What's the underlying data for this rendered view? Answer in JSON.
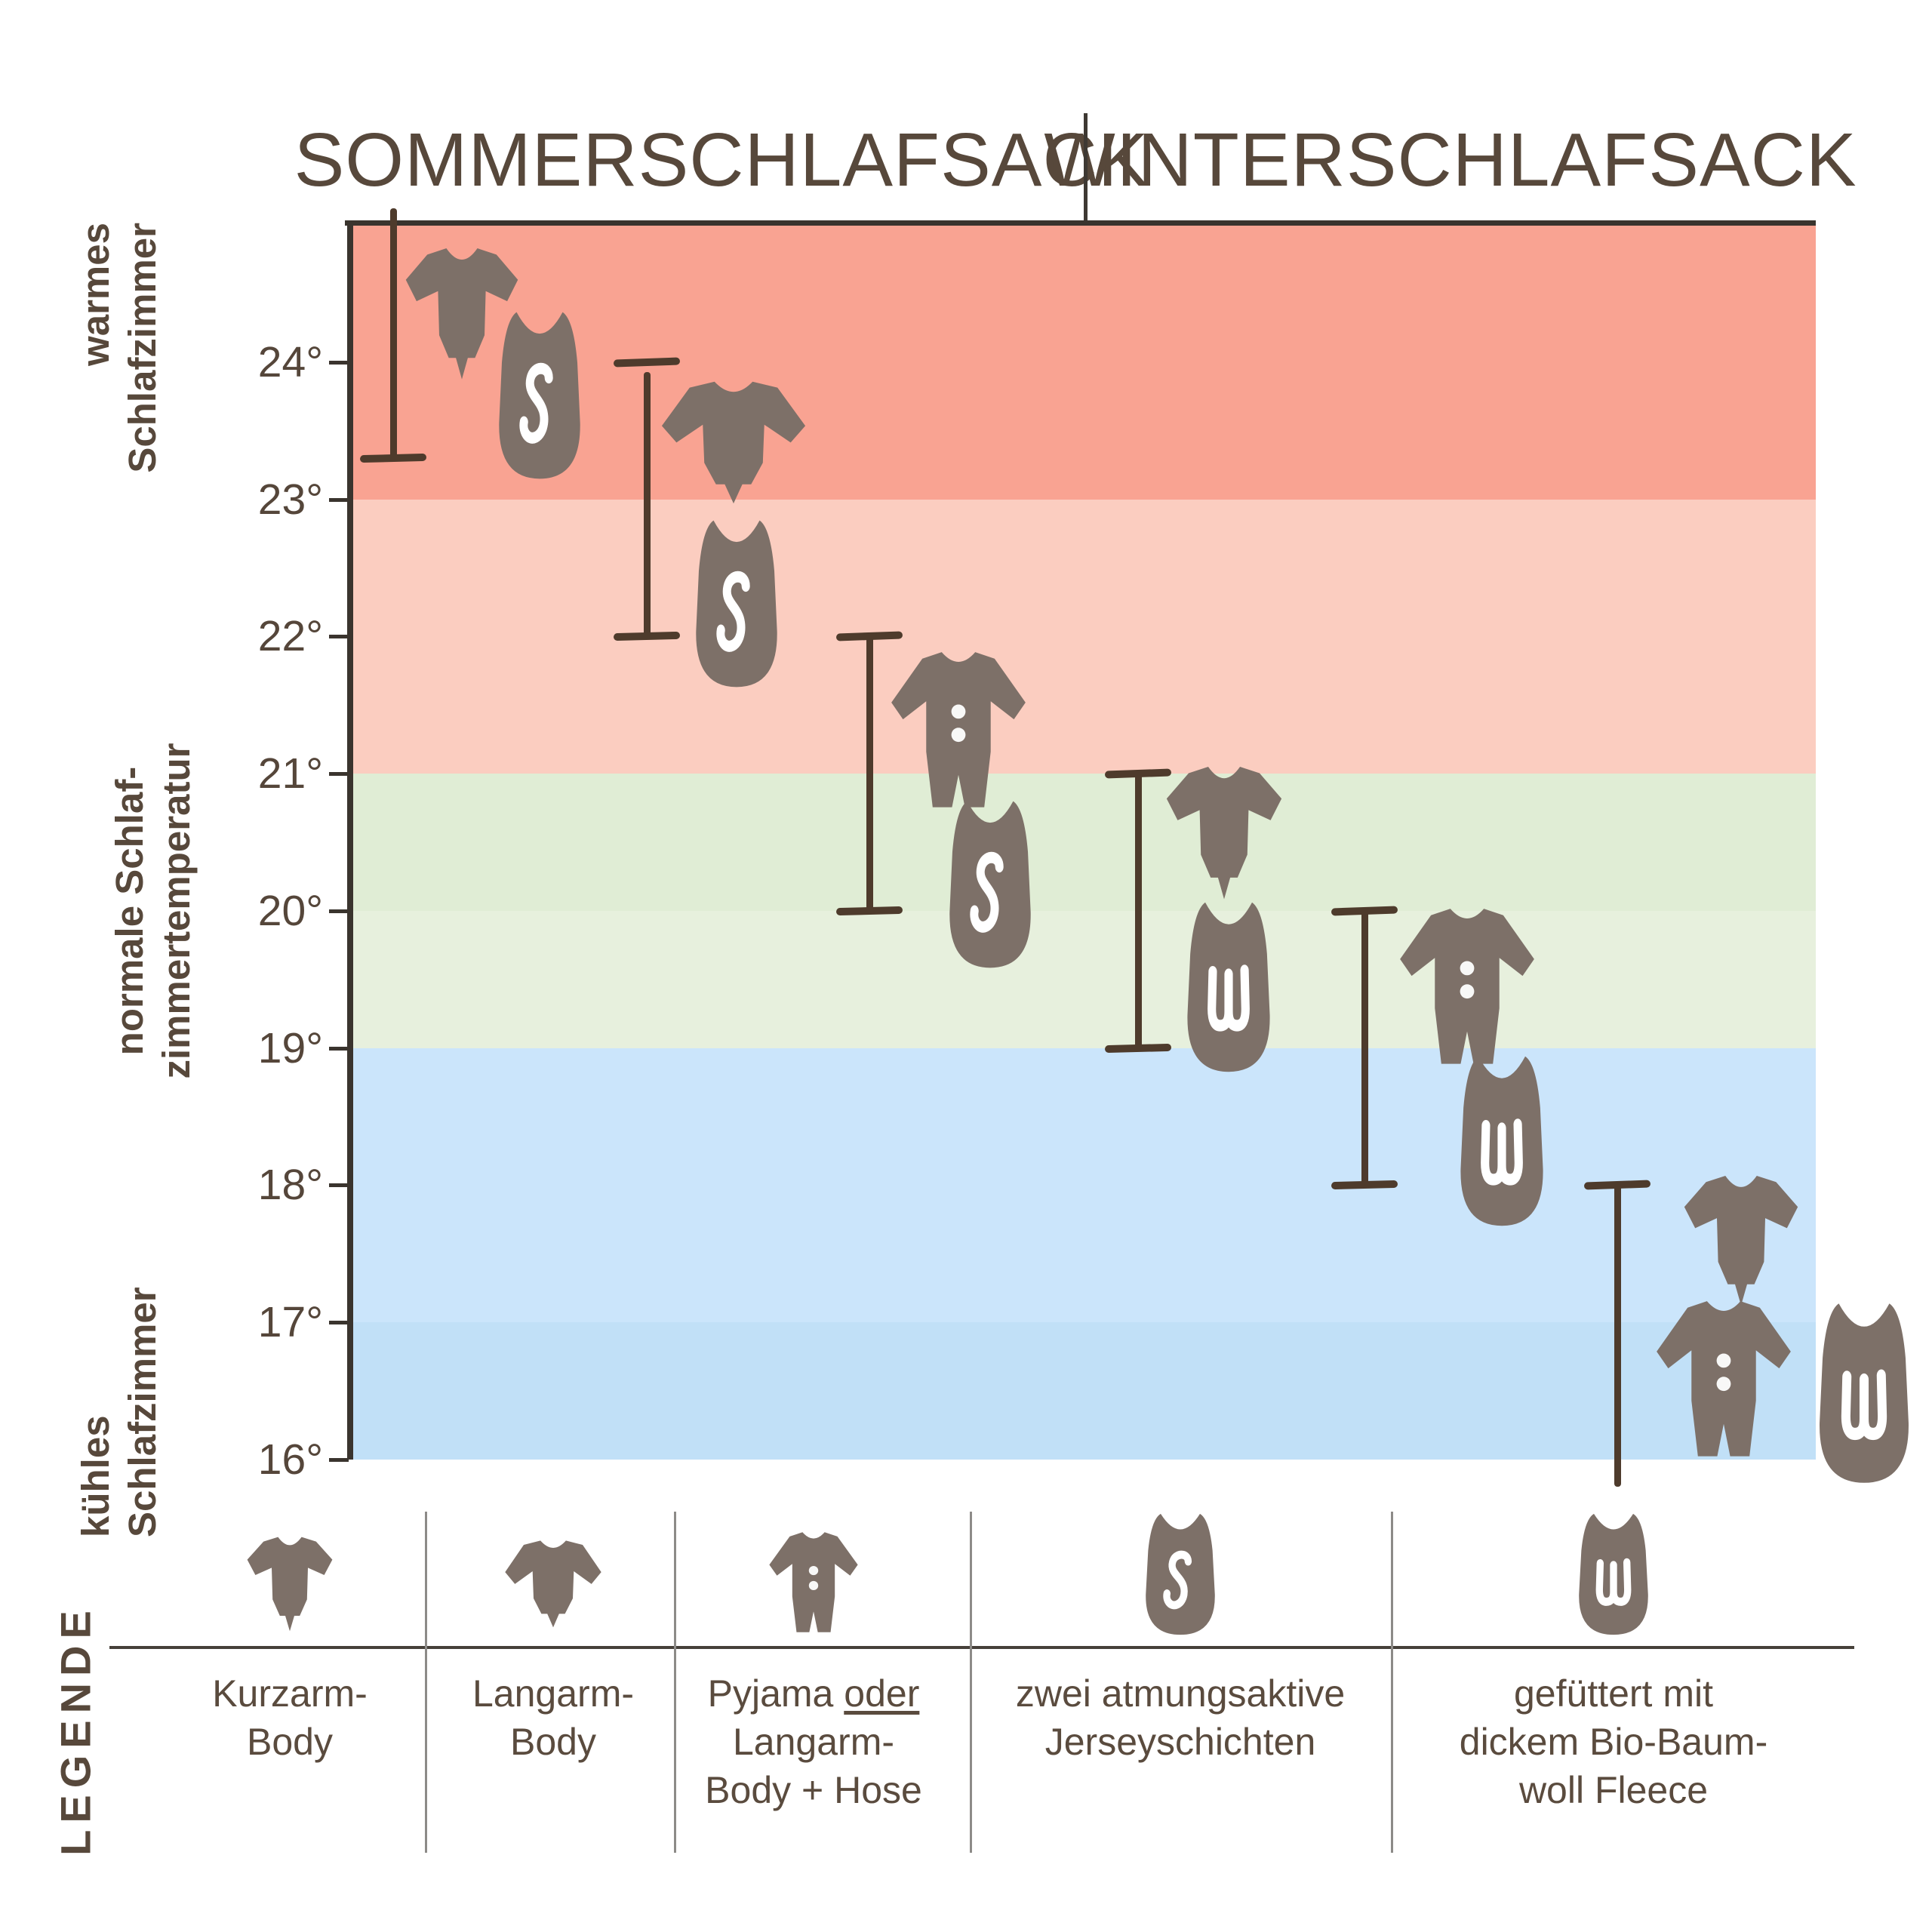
{
  "header": {
    "columns": [
      "SOMMERSCHLAFSACK",
      "WINTERSCHLAFSACK"
    ]
  },
  "colors": {
    "band_23_25": "#F9A392",
    "band_21_23": "#FBCDC0",
    "band_20_21": "#E0EDD5",
    "band_19_20": "#E7F0DD",
    "band_17_19": "#CBE5FB",
    "band_16_17": "#C1E0F7",
    "icon": "#7D7068",
    "bar": "#4E3B2C",
    "text": "#57483B",
    "axis": "#3A342E"
  },
  "zones": [
    {
      "lines": [
        "warmes",
        "Schlafzimmer"
      ]
    },
    {
      "lines": [
        "normale Schlaf-",
        "zimmertemperatur"
      ]
    },
    {
      "lines": [
        "kühles",
        "Schlafzimmer"
      ]
    }
  ],
  "chart_data": {
    "type": "bar",
    "subtype": "vertical-temperature-range-infographic",
    "columns": [
      "SOMMERSCHLAFSACK",
      "WINTERSCHLAFSACK"
    ],
    "ylim": [
      16,
      25
    ],
    "yticks": [
      {
        "value": 24,
        "label": "24°"
      },
      {
        "value": 23,
        "label": "23°"
      },
      {
        "value": 22,
        "label": "22°"
      },
      {
        "value": 21,
        "label": "21°"
      },
      {
        "value": 20,
        "label": "20°"
      },
      {
        "value": 19,
        "label": "19°"
      },
      {
        "value": 18,
        "label": "18°"
      },
      {
        "value": 17,
        "label": "17°"
      },
      {
        "value": 16,
        "label": "16°"
      }
    ],
    "bands": [
      {
        "from": 25,
        "to": 23,
        "zone": "warmes Schlafzimmer",
        "color": "#F9A392"
      },
      {
        "from": 23,
        "to": 21,
        "zone": "warmes Schlafzimmer",
        "color": "#FBCDC0"
      },
      {
        "from": 21,
        "to": 20,
        "zone": "normale Schlafzimmertemperatur",
        "color": "#E0EDD5"
      },
      {
        "from": 20,
        "to": 19,
        "zone": "normale Schlafzimmertemperatur",
        "color": "#E7F0DD"
      },
      {
        "from": 19,
        "to": 17,
        "zone": "kühles Schlafzimmer",
        "color": "#CBE5FB"
      },
      {
        "from": 17,
        "to": 16,
        "zone": "kühles Schlafzimmer",
        "color": "#C1E0F7"
      }
    ],
    "series": [
      {
        "column": "SOMMERSCHLAFSACK",
        "range_c": [
          23.3,
          25
        ],
        "outfit": [
          "Kurzarm-Body"
        ],
        "sack": "S"
      },
      {
        "column": "SOMMERSCHLAFSACK",
        "range_c": [
          22,
          24
        ],
        "outfit": [
          "Langarm-Body"
        ],
        "sack": "S"
      },
      {
        "column": "SOMMERSCHLAFSACK",
        "range_c": [
          20,
          22
        ],
        "outfit": [
          "Pyjama oder Langarm-Body + Hose"
        ],
        "sack": "S"
      },
      {
        "column": "WINTERSCHLAFSACK",
        "range_c": [
          19,
          21
        ],
        "outfit": [
          "Kurzarm-Body"
        ],
        "sack": "W"
      },
      {
        "column": "WINTERSCHLAFSACK",
        "range_c": [
          18,
          20
        ],
        "outfit": [
          "Pyjama oder Langarm-Body + Hose"
        ],
        "sack": "W"
      },
      {
        "column": "WINTERSCHLAFSACK",
        "range_c": [
          16,
          18
        ],
        "outfit": [
          "Kurzarm-Body",
          "Pyjama oder Langarm-Body + Hose"
        ],
        "sack": "W"
      }
    ]
  },
  "legend": {
    "heading": "LEGENDE",
    "items": [
      {
        "icon": "kurzarm",
        "lines": [
          "Kurzarm-",
          "Body"
        ]
      },
      {
        "icon": "langarm",
        "lines": [
          "Langarm-",
          "Body"
        ]
      },
      {
        "icon": "pyjama",
        "lines": [
          "Pyjama oder",
          "Langarm-",
          "Body + Hose"
        ],
        "underline": "oder"
      },
      {
        "icon": "bag-s",
        "lines": [
          "zwei atmungsaktive",
          "Jerseyschichten"
        ]
      },
      {
        "icon": "bag-w",
        "lines": [
          "gefüttert mit",
          "dickem Bio-Baum-",
          "woll Fleece"
        ]
      }
    ]
  }
}
